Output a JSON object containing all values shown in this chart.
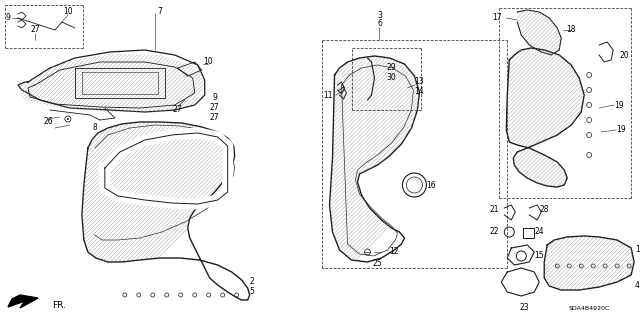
{
  "background_color": "#ffffff",
  "diagram_code": "SDA4B4920C",
  "fig_width": 6.4,
  "fig_height": 3.19,
  "dpi": 100,
  "line_color": "#1a1a1a",
  "text_color": "#000000",
  "label_fontsize": 5.5
}
